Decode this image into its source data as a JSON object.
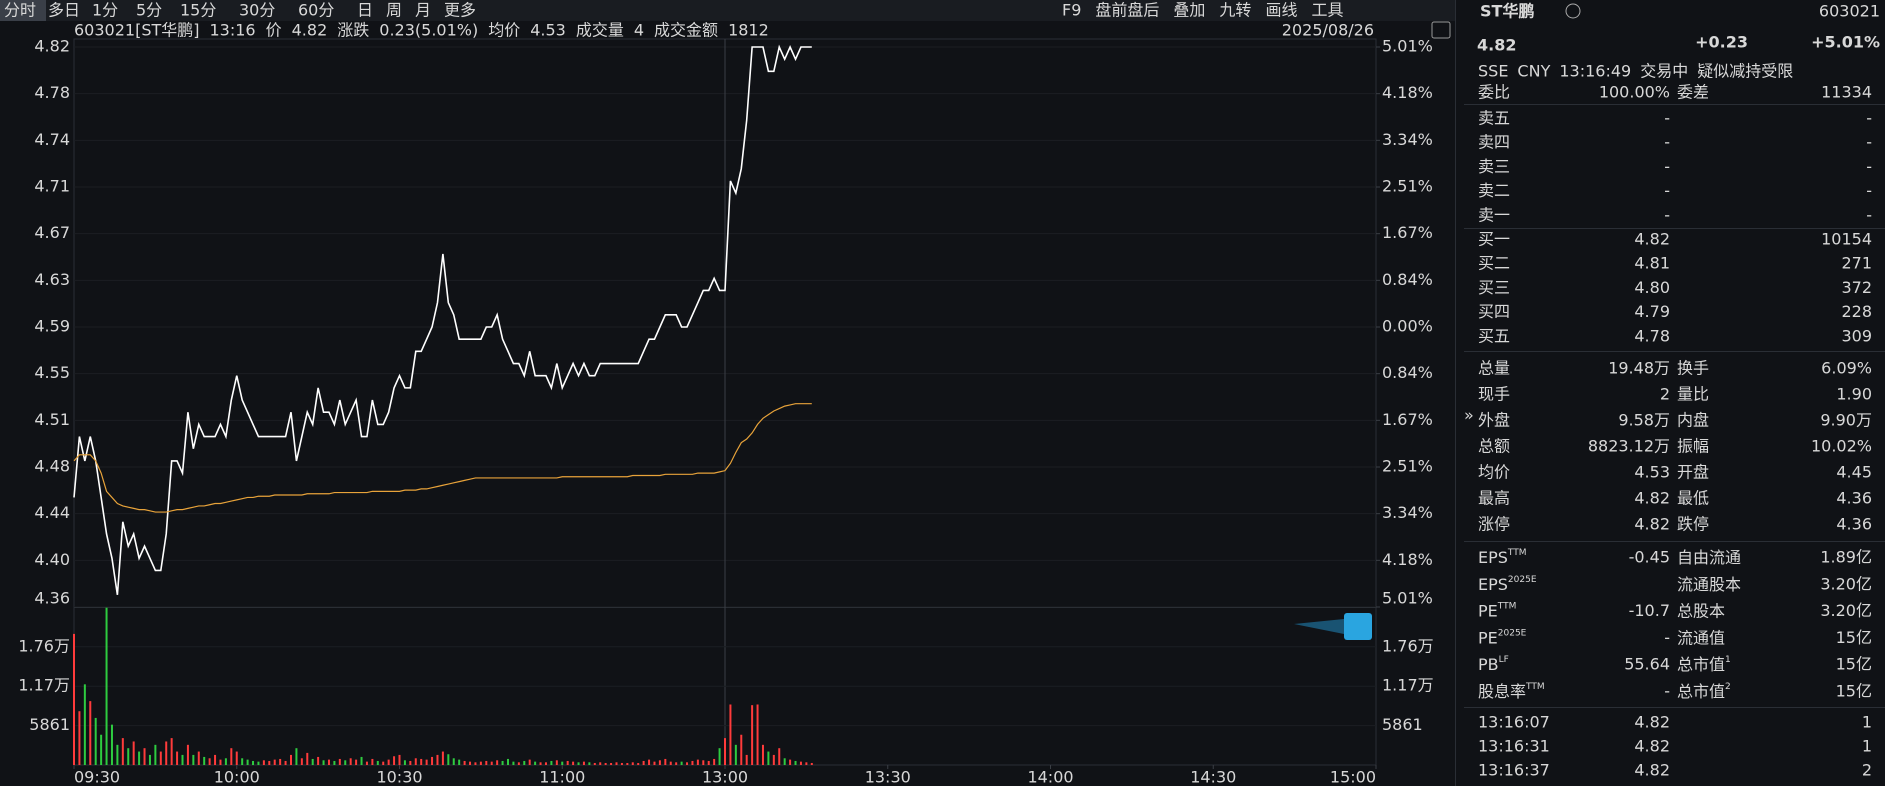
{
  "toolbar": {
    "tabs": [
      "分时",
      "多日",
      "1分",
      "5分",
      "15分",
      "30分",
      "60分",
      "日",
      "周",
      "月",
      "更多"
    ],
    "tools": [
      "F9",
      "盘前盘后",
      "叠加",
      "九转",
      "画线",
      "工具"
    ]
  },
  "header": {
    "items": [
      {
        "text": "603021[ST华鹏]",
        "tone": "w"
      },
      {
        "text": "13:16",
        "tone": "c"
      },
      {
        "text": "价",
        "tone": "w"
      },
      {
        "text": "4.82",
        "tone": "r"
      },
      {
        "text": "涨跌",
        "tone": "w"
      },
      {
        "text": "0.23(5.01%)",
        "tone": "r"
      },
      {
        "text": "均价",
        "tone": "w"
      },
      {
        "text": "4.53",
        "tone": "g"
      },
      {
        "text": "成交量",
        "tone": "w"
      },
      {
        "text": "4",
        "tone": "w"
      },
      {
        "text": "成交金额",
        "tone": "w"
      },
      {
        "text": "1812",
        "tone": "w"
      }
    ],
    "date": "2025/08/26"
  },
  "chart_data": [
    {
      "type": "line",
      "x": [
        0,
        1,
        2,
        3,
        4,
        5,
        6,
        7,
        8,
        9,
        10,
        11,
        12,
        13,
        14,
        15,
        16,
        17,
        18,
        19,
        20,
        21,
        22,
        23,
        24,
        25,
        26,
        27,
        28,
        29,
        30,
        31,
        32,
        33,
        34,
        35,
        36,
        37,
        38,
        39,
        40,
        41,
        42,
        43,
        44,
        45,
        46,
        47,
        48,
        49,
        50,
        51,
        52,
        53,
        54,
        55,
        56,
        57,
        58,
        59,
        60,
        61,
        62,
        63,
        64,
        65,
        66,
        67,
        68,
        69,
        70,
        71,
        72,
        73,
        74,
        75,
        76,
        77,
        78,
        79,
        80,
        81,
        82,
        83,
        84,
        85,
        86,
        87,
        88,
        89,
        90,
        91,
        92,
        93,
        94,
        95,
        96,
        97,
        98,
        99,
        100,
        101,
        102,
        103,
        104,
        105,
        106,
        107,
        108,
        109,
        110,
        111,
        112,
        113,
        114,
        115,
        116,
        117,
        118,
        119,
        120,
        121,
        122,
        123,
        124,
        125,
        126,
        127,
        128,
        129,
        130,
        131,
        132,
        133,
        134,
        135,
        136
      ],
      "xlim": [
        0,
        240
      ],
      "xticks": [
        {
          "value": 0,
          "label": "09:30"
        },
        {
          "value": 30,
          "label": "10:00"
        },
        {
          "value": 60,
          "label": "10:30"
        },
        {
          "value": 90,
          "label": "11:00"
        },
        {
          "value": 120,
          "label": "13:00"
        },
        {
          "value": 150,
          "label": "13:30"
        },
        {
          "value": 180,
          "label": "14:00"
        },
        {
          "value": 210,
          "label": "14:30"
        },
        {
          "value": 240,
          "label": "15:00"
        }
      ],
      "ylim": [
        4.36,
        4.82
      ],
      "yticks": [
        4.82,
        {
          "value": 4.7817,
          "label": "4.78"
        },
        {
          "value": 4.7433,
          "label": "4.74"
        },
        {
          "value": 4.705,
          "label": "4.71"
        },
        {
          "value": 4.6667,
          "label": "4.67"
        },
        {
          "value": 4.6283,
          "label": "4.63"
        },
        4.59,
        {
          "value": 4.5517,
          "label": "4.55"
        },
        {
          "value": 4.5133,
          "label": "4.51"
        },
        {
          "value": 4.475,
          "label": "4.48"
        },
        {
          "value": 4.4367,
          "label": "4.44"
        },
        {
          "value": 4.3983,
          "label": "4.40"
        },
        4.36
      ],
      "y2lim": [
        -5.01,
        5.01
      ],
      "y2ticks": [
        {
          "value": 5.01,
          "label": "5.01%"
        },
        {
          "value": 4.175,
          "label": "4.18%"
        },
        {
          "value": 3.34,
          "label": "3.34%"
        },
        {
          "value": 2.505,
          "label": "2.51%"
        },
        {
          "value": 1.67,
          "label": "1.67%"
        },
        {
          "value": 0.835,
          "label": "0.84%"
        },
        {
          "value": 0,
          "label": "0.00%"
        },
        {
          "value": -0.835,
          "label": "0.84%"
        },
        {
          "value": -1.67,
          "label": "1.67%"
        },
        {
          "value": -2.505,
          "label": "2.51%"
        },
        {
          "value": -3.34,
          "label": "3.34%"
        },
        {
          "value": -4.175,
          "label": "4.18%"
        },
        {
          "value": -5.01,
          "label": "5.01%"
        }
      ],
      "up_color": "#ff3b3b",
      "down_color": "#2ecc40",
      "series": [
        {
          "color": "#ffffff",
          "values": [
            4.45,
            4.5,
            4.48,
            4.5,
            4.48,
            4.45,
            4.42,
            4.4,
            4.37,
            4.43,
            4.41,
            4.42,
            4.4,
            4.41,
            4.4,
            4.39,
            4.39,
            4.42,
            4.48,
            4.48,
            4.47,
            4.52,
            4.49,
            4.51,
            4.5,
            4.5,
            4.5,
            4.51,
            4.5,
            4.53,
            4.55,
            4.53,
            4.52,
            4.51,
            4.5,
            4.5,
            4.5,
            4.5,
            4.5,
            4.5,
            4.52,
            4.48,
            4.5,
            4.52,
            4.51,
            4.54,
            4.52,
            4.52,
            4.51,
            4.53,
            4.51,
            4.52,
            4.53,
            4.5,
            4.5,
            4.53,
            4.51,
            4.51,
            4.52,
            4.54,
            4.55,
            4.54,
            4.54,
            4.57,
            4.57,
            4.58,
            4.59,
            4.61,
            4.65,
            4.61,
            4.6,
            4.58,
            4.58,
            4.58,
            4.58,
            4.58,
            4.59,
            4.59,
            4.6,
            4.58,
            4.57,
            4.56,
            4.56,
            4.55,
            4.57,
            4.55,
            4.55,
            4.55,
            4.54,
            4.56,
            4.54,
            4.55,
            4.56,
            4.55,
            4.56,
            4.55,
            4.55,
            4.56,
            4.56,
            4.56,
            4.56,
            4.56,
            4.56,
            4.56,
            4.56,
            4.57,
            4.58,
            4.58,
            4.59,
            4.6,
            4.6,
            4.6,
            4.59,
            4.59,
            4.6,
            4.61,
            4.62,
            4.62,
            4.63,
            4.62,
            4.62,
            4.71,
            4.7,
            4.72,
            4.76,
            4.82,
            4.82,
            4.82,
            4.8,
            4.8,
            4.82,
            4.81,
            4.82,
            4.81,
            4.82,
            4.82,
            4.82
          ]
        },
        {
          "color": "#e8a33a",
          "values": [
            4.48,
            4.485,
            4.485,
            4.485,
            4.48,
            4.47,
            4.455,
            4.45,
            4.445,
            4.443,
            4.442,
            4.441,
            4.44,
            4.44,
            4.439,
            4.438,
            4.438,
            4.438,
            4.439,
            4.44,
            4.44,
            4.441,
            4.442,
            4.443,
            4.443,
            4.444,
            4.445,
            4.445,
            4.446,
            4.447,
            4.448,
            4.449,
            4.45,
            4.45,
            4.451,
            4.451,
            4.451,
            4.452,
            4.452,
            4.452,
            4.452,
            4.452,
            4.452,
            4.453,
            4.453,
            4.453,
            4.453,
            4.453,
            4.454,
            4.454,
            4.454,
            4.454,
            4.454,
            4.454,
            4.454,
            4.455,
            4.455,
            4.455,
            4.455,
            4.455,
            4.455,
            4.456,
            4.456,
            4.456,
            4.457,
            4.457,
            4.458,
            4.459,
            4.46,
            4.461,
            4.462,
            4.463,
            4.464,
            4.465,
            4.466,
            4.466,
            4.466,
            4.466,
            4.466,
            4.466,
            4.466,
            4.466,
            4.466,
            4.466,
            4.466,
            4.466,
            4.466,
            4.466,
            4.466,
            4.466,
            4.467,
            4.467,
            4.467,
            4.467,
            4.467,
            4.467,
            4.467,
            4.467,
            4.467,
            4.467,
            4.467,
            4.467,
            4.467,
            4.468,
            4.468,
            4.468,
            4.468,
            4.468,
            4.468,
            4.469,
            4.469,
            4.469,
            4.469,
            4.469,
            4.469,
            4.47,
            4.47,
            4.47,
            4.47,
            4.471,
            4.472,
            4.478,
            4.487,
            4.495,
            4.498,
            4.503,
            4.51,
            4.515,
            4.518,
            4.521,
            4.523,
            4.525,
            4.526,
            4.527,
            4.527,
            4.527,
            4.527
          ]
        }
      ]
    },
    {
      "type": "bar",
      "x": [
        0,
        1,
        2,
        3,
        4,
        5,
        6,
        7,
        8,
        9,
        10,
        11,
        12,
        13,
        14,
        15,
        16,
        17,
        18,
        19,
        20,
        21,
        22,
        23,
        24,
        25,
        26,
        27,
        28,
        29,
        30,
        31,
        32,
        33,
        34,
        35,
        36,
        37,
        38,
        39,
        40,
        41,
        42,
        43,
        44,
        45,
        46,
        47,
        48,
        49,
        50,
        51,
        52,
        53,
        54,
        55,
        56,
        57,
        58,
        59,
        60,
        61,
        62,
        63,
        64,
        65,
        66,
        67,
        68,
        69,
        70,
        71,
        72,
        73,
        74,
        75,
        76,
        77,
        78,
        79,
        80,
        81,
        82,
        83,
        84,
        85,
        86,
        87,
        88,
        89,
        90,
        91,
        92,
        93,
        94,
        95,
        96,
        97,
        98,
        99,
        100,
        101,
        102,
        103,
        104,
        105,
        106,
        107,
        108,
        109,
        110,
        111,
        112,
        113,
        114,
        115,
        116,
        117,
        118,
        119,
        120,
        121,
        122,
        123,
        124,
        125,
        126,
        127,
        128,
        129,
        130,
        131,
        132,
        133,
        134,
        135,
        136
      ],
      "xlim": [
        0,
        240
      ],
      "ylim": [
        0,
        23500
      ],
      "yticks": [
        5861,
        {
          "value": 11722,
          "label": "1.17万"
        },
        {
          "value": 17583,
          "label": "1.76万"
        }
      ],
      "values": [
        19500,
        8000,
        12000,
        9500,
        7000,
        4500,
        23400,
        6000,
        3000,
        4000,
        2500,
        3500,
        2000,
        2500,
        1500,
        3000,
        2000,
        3500,
        4000,
        2000,
        1500,
        3000,
        1500,
        2000,
        1200,
        1000,
        1500,
        800,
        1000,
        2500,
        2000,
        1000,
        800,
        600,
        500,
        700,
        600,
        800,
        900,
        600,
        1500,
        2500,
        1000,
        1800,
        900,
        1200,
        700,
        800,
        600,
        900,
        700,
        1000,
        800,
        1200,
        500,
        900,
        600,
        500,
        800,
        1300,
        1500,
        700,
        600,
        1000,
        900,
        800,
        1200,
        1500,
        2000,
        1600,
        1000,
        800,
        600,
        500,
        400,
        500,
        600,
        500,
        700,
        600,
        900,
        500,
        400,
        600,
        800,
        500,
        400,
        400,
        600,
        700,
        500,
        600,
        500,
        400,
        500,
        400,
        300,
        400,
        300,
        300,
        400,
        300,
        300,
        400,
        300,
        600,
        800,
        500,
        700,
        900,
        500,
        400,
        500,
        400,
        600,
        800,
        700,
        600,
        900,
        2500,
        4000,
        9000,
        3000,
        4500,
        1500,
        8900,
        9000,
        3000,
        2000,
        1500,
        2500,
        1000,
        800,
        600,
        500,
        400,
        300
      ]
    }
  ],
  "quote": {
    "name": "ST华鹏",
    "code": "603021",
    "price": "4.82",
    "change": "+0.23",
    "change_pct": "+5.01%",
    "info": [
      "SSE",
      "CNY",
      "13:16:49",
      "交易中",
      "疑似减持受限"
    ]
  },
  "order_ratio": [
    {
      "label": "委比",
      "value": "100.00%",
      "tone": "r"
    },
    {
      "label": "委差",
      "value": "11334",
      "tone": "r"
    }
  ],
  "asks": [
    {
      "label": "卖五",
      "price": "-",
      "volume": "-"
    },
    {
      "label": "卖四",
      "price": "-",
      "volume": "-"
    },
    {
      "label": "卖三",
      "price": "-",
      "volume": "-"
    },
    {
      "label": "卖二",
      "price": "-",
      "volume": "-"
    },
    {
      "label": "卖一",
      "price": "-",
      "volume": "-"
    }
  ],
  "bids": [
    {
      "label": "买一",
      "price": "4.82",
      "volume": "10154"
    },
    {
      "label": "买二",
      "price": "4.81",
      "volume": "271"
    },
    {
      "label": "买三",
      "price": "4.80",
      "volume": "372"
    },
    {
      "label": "买四",
      "price": "4.79",
      "volume": "228"
    },
    {
      "label": "买五",
      "price": "4.78",
      "volume": "309"
    }
  ],
  "stats": [
    [
      {
        "label": "总量",
        "value": "19.48万",
        "tone": "w"
      },
      {
        "label": "换手",
        "value": "6.09%",
        "tone": "w"
      }
    ],
    [
      {
        "label": "现手",
        "value": "2",
        "tone": "w"
      },
      {
        "label": "量比",
        "value": "1.90",
        "tone": "w"
      }
    ],
    [
      {
        "label": "外盘",
        "value": "9.58万",
        "tone": "r"
      },
      {
        "label": "内盘",
        "value": "9.90万",
        "tone": "g"
      }
    ],
    [
      {
        "label": "总额",
        "value": "8823.12万",
        "tone": "w"
      },
      {
        "label": "振幅",
        "value": "10.02%",
        "tone": "w"
      }
    ],
    [
      {
        "label": "均价",
        "value": "4.53",
        "tone": "g"
      },
      {
        "label": "开盘",
        "value": "4.45",
        "tone": "g"
      }
    ],
    [
      {
        "label": "最高",
        "value": "4.82",
        "tone": "r"
      },
      {
        "label": "最低",
        "value": "4.36",
        "tone": "g"
      }
    ],
    [
      {
        "label": "涨停",
        "value": "4.82",
        "tone": "r"
      },
      {
        "label": "跌停",
        "value": "4.36",
        "tone": "g"
      }
    ]
  ],
  "fundamentals": [
    [
      {
        "label": "EPS",
        "sup": "TTM",
        "value": "-0.45"
      },
      {
        "label": "自由流通",
        "value": "1.89亿"
      }
    ],
    [
      {
        "label": "EPS",
        "sup": "2025E"
      },
      {
        "label": "流通股本",
        "value": "3.20亿"
      }
    ],
    [
      {
        "label": "PE",
        "sup": "TTM",
        "value": "-10.7"
      },
      {
        "label": "总股本",
        "value": "3.20亿"
      }
    ],
    [
      {
        "label": "PE",
        "sup": "2025E",
        "value": "-"
      },
      {
        "label": "流通值",
        "value": "15亿"
      }
    ],
    [
      {
        "label": "PB",
        "sup": "LF",
        "value": "55.64"
      },
      {
        "label": "总市值",
        "sup": "1",
        "value": "15亿"
      }
    ],
    [
      {
        "label": "股息率",
        "sup": "TTM",
        "value": "-"
      },
      {
        "label": "总市值",
        "sup": "2",
        "value": "15亿"
      }
    ]
  ],
  "trades": [
    {
      "time": "13:16:07",
      "price": "4.82",
      "volume": "1"
    },
    {
      "time": "13:16:31",
      "price": "4.82",
      "volume": "1"
    },
    {
      "time": "13:16:37",
      "price": "4.82",
      "volume": "2"
    }
  ]
}
